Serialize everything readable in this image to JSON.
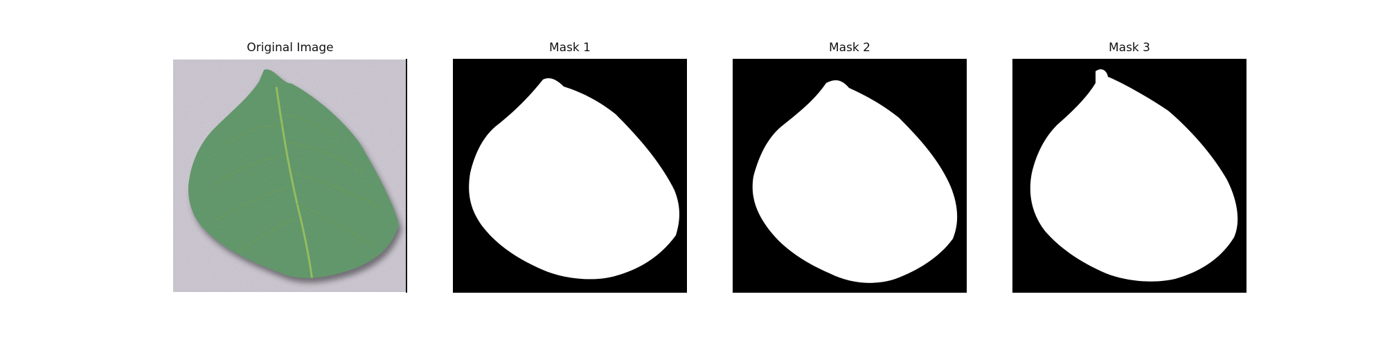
{
  "figure": {
    "panels": [
      {
        "title": "Original Image",
        "kind": "photo",
        "content": "leaf-photo"
      },
      {
        "title": "Mask 1",
        "kind": "binary-mask",
        "foreground": "#ffffff",
        "background": "#000000"
      },
      {
        "title": "Mask 2",
        "kind": "binary-mask",
        "foreground": "#ffffff",
        "background": "#000000"
      },
      {
        "title": "Mask 3",
        "kind": "binary-mask",
        "foreground": "#ffffff",
        "background": "#000000"
      }
    ]
  }
}
